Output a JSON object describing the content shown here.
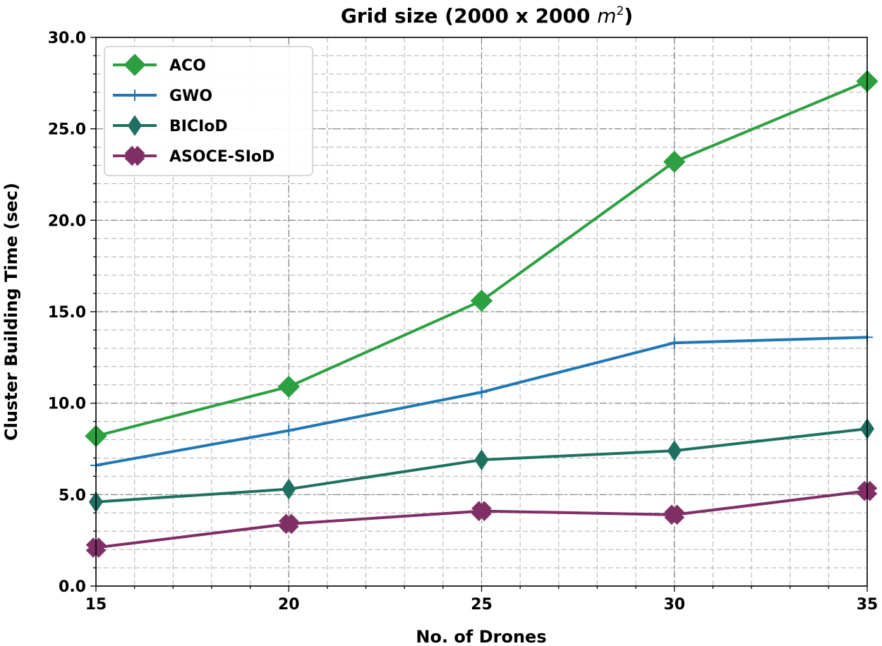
{
  "chart_data": {
    "type": "line",
    "title": "Grid size (2000 x 2000 m²)",
    "title_parts": {
      "main": "Grid size (2000 x 2000 ",
      "unit": "m",
      "exponent": "2",
      "close": ")"
    },
    "xlabel": "No. of Drones",
    "ylabel": "Cluster Building Time (sec)",
    "x": [
      15,
      20,
      25,
      30,
      35
    ],
    "xlim": [
      15,
      35
    ],
    "ylim": [
      0,
      30
    ],
    "xticks": [
      15,
      20,
      25,
      30,
      35
    ],
    "xtick_labels": [
      "15",
      "20",
      "25",
      "30",
      "35"
    ],
    "yticks": [
      0,
      5,
      10,
      15,
      20,
      25,
      30
    ],
    "ytick_labels": [
      "0.0",
      "5.0",
      "10.0",
      "15.0",
      "20.0",
      "25.0",
      "30.0"
    ],
    "grid": true,
    "legend_position": "top-left",
    "series": [
      {
        "name": "ACO",
        "color": "#2ca041",
        "marker": "diamond",
        "values": [
          8.2,
          10.9,
          15.6,
          23.2,
          27.6
        ]
      },
      {
        "name": "GWO",
        "color": "#1f77b4",
        "marker": "plus",
        "values": [
          6.6,
          8.5,
          10.6,
          13.3,
          13.6
        ]
      },
      {
        "name": "BICIoD",
        "color": "#1e7161",
        "marker": "thin-diamond",
        "values": [
          4.6,
          5.3,
          6.9,
          7.4,
          8.6
        ]
      },
      {
        "name": "ASOCE-SIoD",
        "color": "#7f2f65",
        "marker": "x",
        "values": [
          2.1,
          3.4,
          4.1,
          3.9,
          5.2
        ]
      }
    ]
  }
}
